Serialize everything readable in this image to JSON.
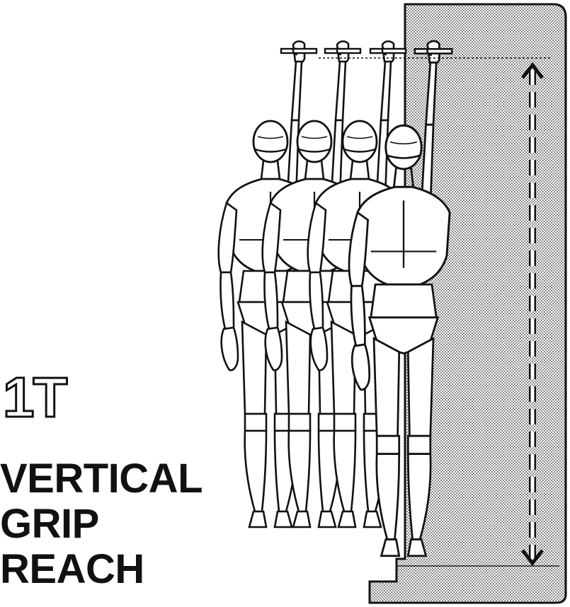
{
  "figure": {
    "code": "1T",
    "title_lines": [
      "VERTICAL",
      "GRIP",
      "REACH"
    ]
  },
  "colors": {
    "ink": "#111111",
    "panel_stipple": "#9a9a9a",
    "figure_fill": "#ffffff"
  },
  "figures": {
    "count": 4,
    "pose": "standing, right arm raised gripping bar"
  },
  "measurement": {
    "type": "vertical-dimension-arrow",
    "style": "dashed"
  }
}
